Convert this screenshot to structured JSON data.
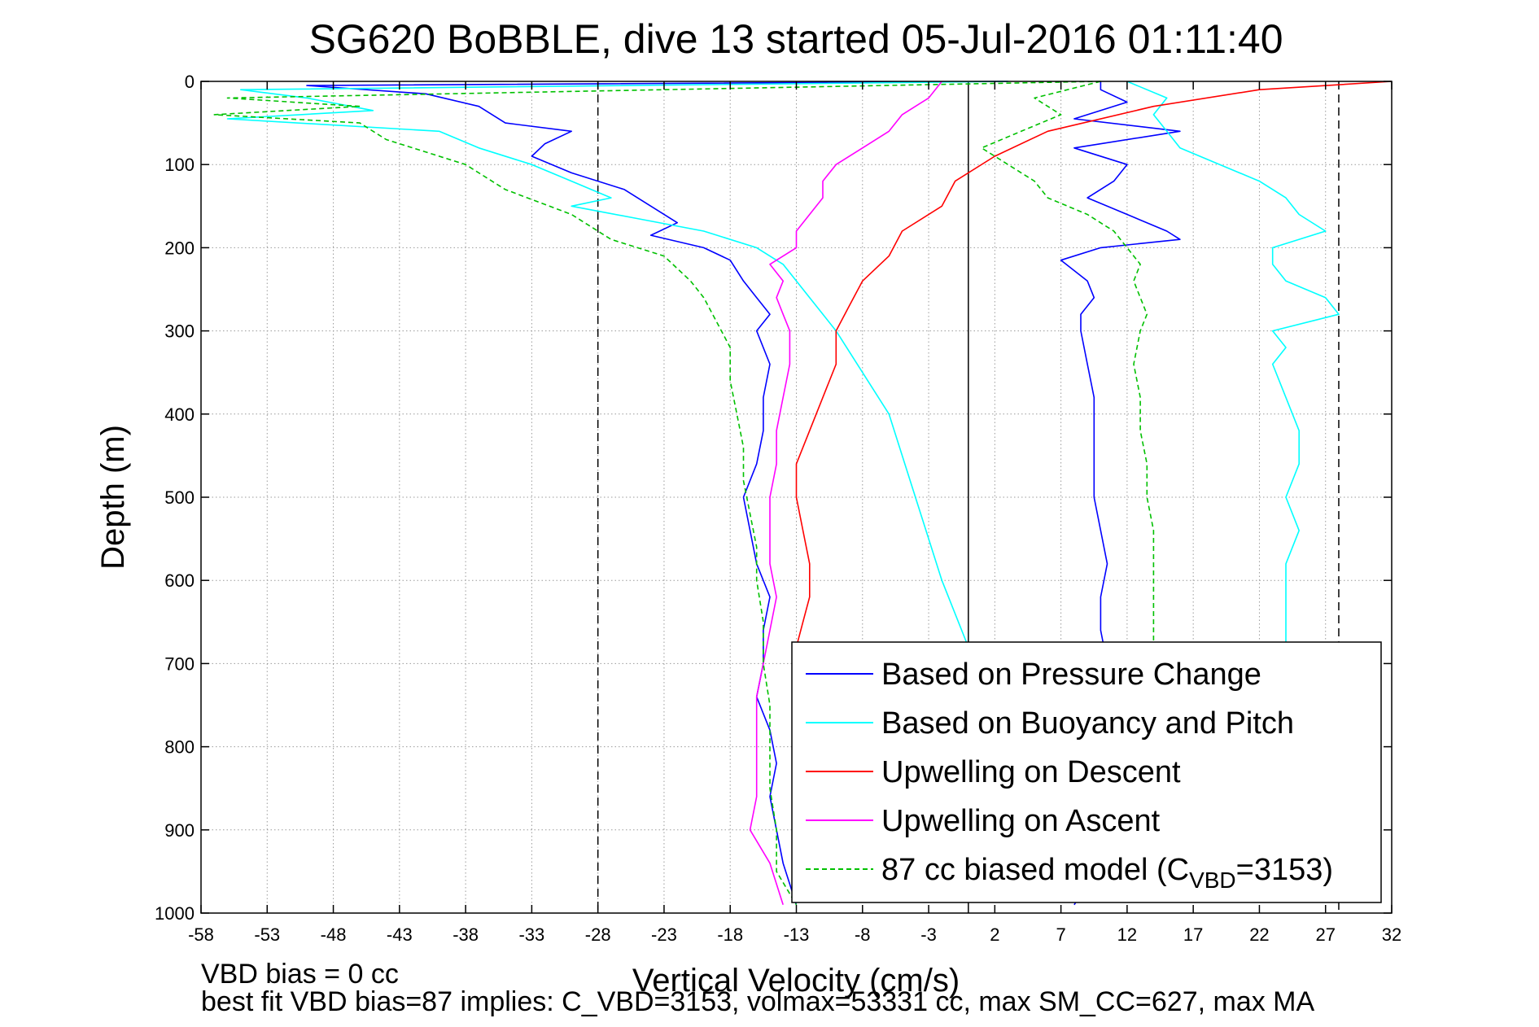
{
  "chart_data": {
    "type": "line",
    "title": "SG620 BoBBLE, dive 13 started 05-Jul-2016 01:11:40",
    "xlabel": "Vertical Velocity (cm/s)",
    "ylabel": "Depth (m)",
    "xlim": [
      -58,
      32
    ],
    "ylim": [
      1000,
      0
    ],
    "y_reversed": true,
    "grid": true,
    "x_ticks": [
      -58,
      -53,
      -48,
      -43,
      -38,
      -33,
      -28,
      -23,
      -18,
      -13,
      -8,
      -3,
      2,
      7,
      12,
      17,
      22,
      27,
      32
    ],
    "x_tick_labels": [
      "-58",
      "-53",
      "-48",
      "-43",
      "-38",
      "-33",
      "-28",
      "-23",
      "-18",
      "-13",
      "-8",
      "-3",
      "2",
      "7",
      "12",
      "17",
      "22",
      "27",
      "32"
    ],
    "y_ticks": [
      0,
      100,
      200,
      300,
      400,
      500,
      600,
      700,
      800,
      900,
      1000
    ],
    "y_tick_labels": [
      "0",
      "100",
      "200",
      "300",
      "400",
      "500",
      "600",
      "700",
      "800",
      "900",
      "1000"
    ],
    "reference_lines": [
      {
        "x": -28,
        "style": "dashed",
        "color": "#000000"
      },
      {
        "x": 0,
        "style": "solid",
        "color": "#000000"
      },
      {
        "x": 28,
        "style": "dashed",
        "color": "#000000"
      }
    ],
    "legend_position": "bottom-right",
    "series": [
      {
        "name": "Based on Pressure Change",
        "color": "#0000ff",
        "style": "solid",
        "segments": [
          {
            "depth": [
              0,
              5,
              15,
              30,
              50,
              60,
              75,
              90,
              110,
              130,
              150,
              170,
              185,
              200,
              215,
              240,
              260,
              280,
              300,
              340,
              380,
              420,
              460,
              500,
              540,
              580,
              620,
              660,
              700,
              740,
              780,
              820,
              860,
              900,
              940,
              990
            ],
            "values": [
              3,
              -50,
              -41,
              -37,
              -35,
              -30,
              -32,
              -33,
              -30,
              -26,
              -24,
              -22,
              -24,
              -20,
              -18,
              -17,
              -16,
              -15,
              -16,
              -15,
              -15.5,
              -15.5,
              -16,
              -17,
              -16.5,
              -16,
              -15,
              -15.5,
              -15.5,
              -16,
              -15,
              -14.5,
              -15,
              -14.5,
              -14,
              -13
            ]
          },
          {
            "depth": [
              0,
              10,
              25,
              45,
              60,
              80,
              100,
              120,
              140,
              160,
              180,
              190,
              200,
              215,
              240,
              260,
              280,
              300,
              340,
              380,
              420,
              460,
              500,
              540,
              580,
              620,
              660,
              700,
              740,
              780,
              820,
              860,
              900,
              940,
              990
            ],
            "values": [
              10,
              10,
              12,
              8,
              16,
              8,
              12,
              11,
              9,
              12,
              15,
              16,
              10,
              7,
              9,
              9.5,
              8.5,
              8.5,
              9,
              9.5,
              9.5,
              9.5,
              9.5,
              10,
              10.5,
              10,
              10,
              10.5,
              10,
              10.5,
              10,
              10.5,
              10,
              10,
              8
            ]
          }
        ]
      },
      {
        "name": "Based on Buoyancy and Pitch",
        "color": "#00ffff",
        "style": "solid",
        "segments": [
          {
            "depth": [
              0,
              10,
              20,
              35,
              45,
              60,
              80,
              100,
              120,
              140,
              150,
              165,
              180,
              200,
              220,
              240,
              260,
              300,
              400,
              500,
              600,
              680
            ],
            "values": [
              3,
              -55,
              -50,
              -45,
              -56,
              -40,
              -37,
              -33,
              -30,
              -27,
              -30,
              -25,
              -20,
              -16,
              -14,
              -13,
              -12,
              -10,
              -6,
              -4,
              -2,
              0
            ]
          },
          {
            "depth": [
              0,
              20,
              40,
              60,
              80,
              100,
              120,
              140,
              160,
              180,
              200,
              220,
              240,
              260,
              280,
              300,
              320,
              340,
              380,
              420,
              460,
              500,
              540,
              580,
              620,
              680
            ],
            "values": [
              12,
              15,
              14,
              15,
              16,
              19,
              22,
              24,
              25,
              27,
              23,
              23,
              24,
              27,
              28,
              23,
              24,
              23,
              24,
              25,
              25,
              24,
              25,
              24,
              24,
              24
            ]
          }
        ]
      },
      {
        "name": "Upwelling on Descent",
        "color": "#ff0000",
        "style": "solid",
        "segments": [
          {
            "depth": [
              0,
              10,
              30,
              60,
              90,
              120,
              150,
              180,
              210,
              240,
              270,
              300,
              340,
              380,
              420,
              460,
              500,
              540,
              580,
              620,
              650,
              680
            ],
            "values": [
              32,
              22,
              14,
              6,
              2,
              -1,
              -2,
              -5,
              -6,
              -8,
              -9,
              -10,
              -10,
              -11,
              -12,
              -13,
              -13,
              -12.5,
              -12,
              -12,
              -12.5,
              -13
            ]
          }
        ]
      },
      {
        "name": "Upwelling on Ascent",
        "color": "#ff00ff",
        "style": "solid",
        "segments": [
          {
            "depth": [
              0,
              20,
              40,
              60,
              80,
              100,
              120,
              140,
              160,
              180,
              200,
              220,
              240,
              260,
              280,
              300,
              340,
              380,
              420,
              460,
              500,
              540,
              580,
              620,
              660,
              700,
              740,
              780,
              820,
              860,
              900,
              940,
              990
            ],
            "values": [
              -2,
              -3,
              -5,
              -6,
              -8,
              -10,
              -11,
              -11,
              -12,
              -13,
              -13,
              -15,
              -14,
              -14.5,
              -14,
              -13.5,
              -13.5,
              -14,
              -14.5,
              -14.5,
              -15,
              -15,
              -15,
              -14.5,
              -15,
              -15.5,
              -16,
              -16,
              -16,
              -16,
              -16.5,
              -15,
              -14
            ]
          }
        ]
      },
      {
        "name": "87 cc biased model (C_VBD=3153)",
        "color": "#00c000",
        "style": "dashed",
        "segments": [
          {
            "depth": [
              0,
              20,
              30,
              40,
              50,
              70,
              100,
              130,
              160,
              190,
              210,
              240,
              260,
              290,
              320,
              360,
              400,
              440,
              480,
              520,
              560,
              600,
              650,
              700,
              750,
              800,
              850,
              900,
              950,
              990
            ],
            "values": [
              10,
              -56,
              -46,
              -57,
              -46,
              -44,
              -38,
              -35,
              -30,
              -27,
              -23,
              -21,
              -20,
              -19,
              -18,
              -18,
              -17.5,
              -17,
              -17,
              -16.5,
              -16,
              -16,
              -15.5,
              -15.5,
              -15,
              -15,
              -15,
              -14.5,
              -14.5,
              -13
            ]
          },
          {
            "depth": [
              0,
              20,
              40,
              60,
              80,
              100,
              120,
              140,
              160,
              180,
              200,
              220,
              240,
              260,
              280,
              300,
              340,
              380,
              420,
              460,
              500,
              540,
              580,
              620,
              660,
              700
            ],
            "values": [
              10,
              5,
              7,
              4,
              1,
              3,
              5,
              6,
              9,
              11,
              12,
              13,
              12.5,
              13,
              13.5,
              13,
              12.5,
              13,
              13,
              13.5,
              13.5,
              14,
              14,
              14,
              14,
              14
            ]
          }
        ]
      }
    ]
  },
  "footer": {
    "vbd_bias": "VBD bias = 0 cc",
    "best_fit": "best fit VBD bias=87 implies: C_VBD=3153, volmax=53331 cc, max SM_CC=627, max MA"
  }
}
